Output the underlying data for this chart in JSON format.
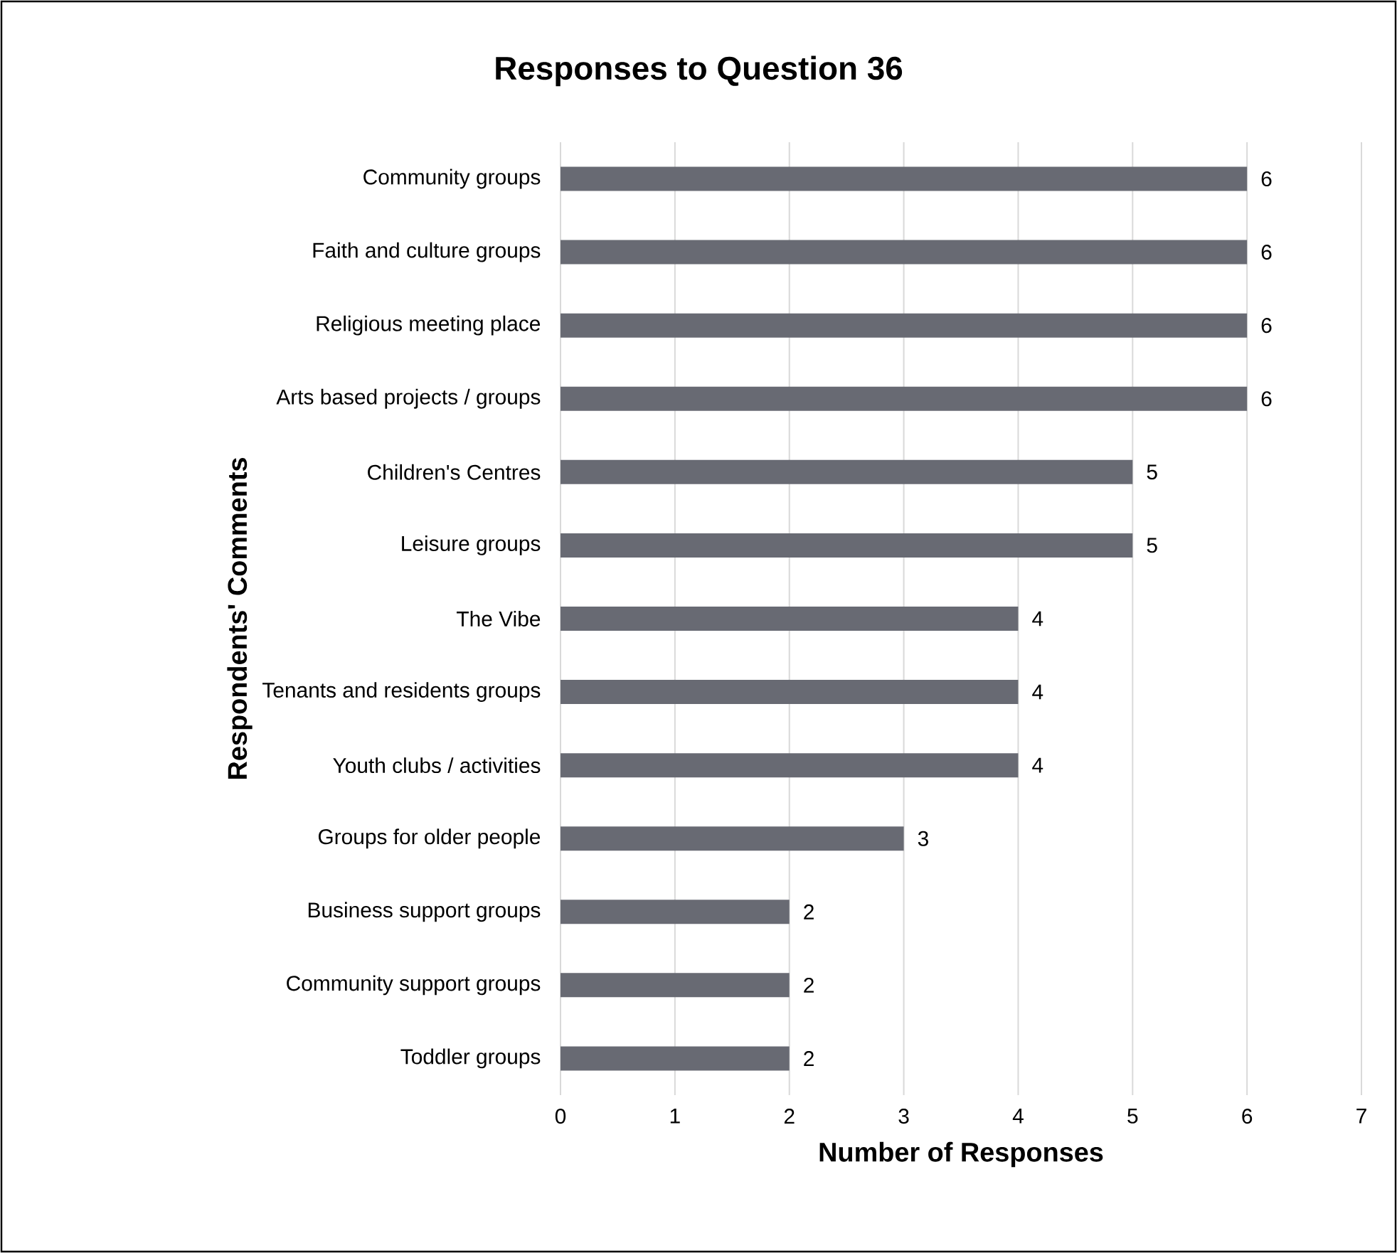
{
  "chart_data": {
    "type": "bar",
    "orientation": "horizontal",
    "title": "Responses to Question 36",
    "xlabel": "Number of Responses",
    "ylabel": "Respondents' Comments",
    "categories": [
      "Community groups",
      "Faith and culture groups",
      "Religious meeting place",
      "Arts based projects / groups",
      "Children's Centres",
      "Leisure groups",
      "The Vibe",
      "Tenants and residents groups",
      "Youth clubs / activities",
      "Groups for older people",
      "Business support groups",
      "Community support groups",
      "Toddler groups"
    ],
    "values": [
      6,
      6,
      6,
      6,
      5,
      5,
      4,
      4,
      4,
      3,
      2,
      2,
      2
    ],
    "color": "#686a73",
    "xlim": [
      0,
      7
    ],
    "xticks": [
      0,
      1,
      2,
      3,
      4,
      5,
      6,
      7
    ],
    "grid": "x",
    "data_labels": true
  }
}
